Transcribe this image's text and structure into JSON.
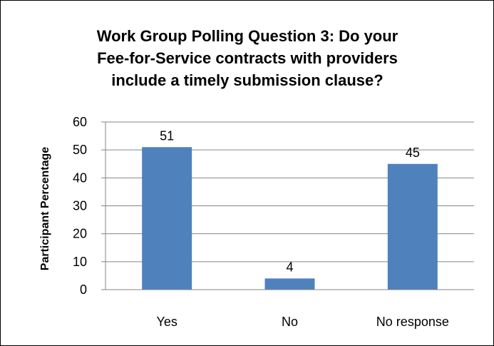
{
  "chart_data": {
    "type": "bar",
    "title_lines": [
      "Work Group Polling Question 3: Do your",
      "Fee-for-Service contracts with providers",
      "include a timely submission clause?"
    ],
    "xlabel": "",
    "ylabel": "Participant Percentage",
    "categories": [
      "Yes",
      "No",
      "No response"
    ],
    "values": [
      51,
      4,
      45
    ],
    "data_labels": [
      "51",
      "4",
      "45"
    ],
    "ylim": [
      0,
      60
    ],
    "yticks": [
      "0",
      "10",
      "20",
      "30",
      "40",
      "50",
      "60"
    ],
    "grid": true,
    "legend": "none",
    "bar_color": "#4F81BD",
    "grid_color": "#868686"
  }
}
